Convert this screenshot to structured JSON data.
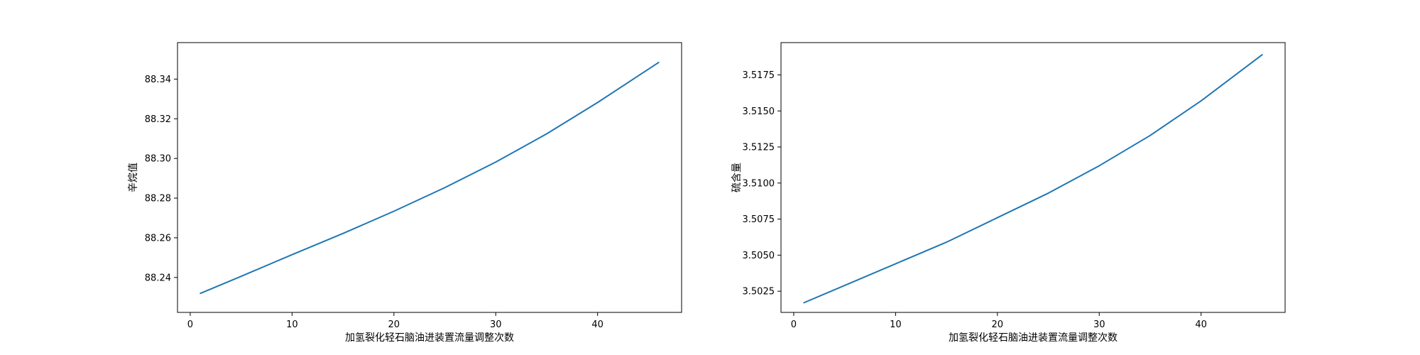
{
  "chart_data": [
    {
      "type": "line",
      "xlabel": "加氢裂化轻石脑油进装置流量调整次数",
      "ylabel": "辛烷值",
      "xlim": [
        -1.25,
        48.25
      ],
      "ylim": [
        88.2224,
        88.3584
      ],
      "xticks": [
        0,
        10,
        20,
        30,
        40
      ],
      "xtick_labels": [
        "0",
        "10",
        "20",
        "30",
        "40"
      ],
      "yticks": [
        88.24,
        88.26,
        88.28,
        88.3,
        88.32,
        88.34
      ],
      "ytick_labels": [
        "88.24",
        "88.26",
        "88.28",
        "88.30",
        "88.32",
        "88.34"
      ],
      "grid": false,
      "color": "#1f77b4",
      "series": [
        {
          "x": [
            1,
            5,
            10,
            15,
            20,
            25,
            30,
            35,
            40,
            46
          ],
          "y": [
            88.232,
            88.2406,
            88.2515,
            88.2622,
            88.2734,
            88.2853,
            88.2982,
            88.3124,
            88.3282,
            88.3484
          ]
        }
      ]
    },
    {
      "type": "line",
      "xlabel": "加氢裂化轻石脑油进装置流量调整次数",
      "ylabel": "硫含量",
      "xlim": [
        -1.25,
        48.25
      ],
      "ylim": [
        3.50103,
        3.51974
      ],
      "xticks": [
        0,
        10,
        20,
        30,
        40
      ],
      "xtick_labels": [
        "0",
        "10",
        "20",
        "30",
        "40"
      ],
      "yticks": [
        3.5025,
        3.505,
        3.5075,
        3.51,
        3.5125,
        3.515,
        3.5175
      ],
      "ytick_labels": [
        "3.5025",
        "3.5050",
        "3.5075",
        "3.5100",
        "3.5125",
        "3.5150",
        "3.5175"
      ],
      "grid": false,
      "color": "#1f77b4",
      "series": [
        {
          "x": [
            1,
            5,
            10,
            15,
            20,
            25,
            30,
            35,
            40,
            46
          ],
          "y": [
            3.5017,
            3.5029,
            3.5044,
            3.5059,
            3.5076,
            3.5093,
            3.5112,
            3.5133,
            3.5157,
            3.5189
          ]
        }
      ]
    }
  ]
}
